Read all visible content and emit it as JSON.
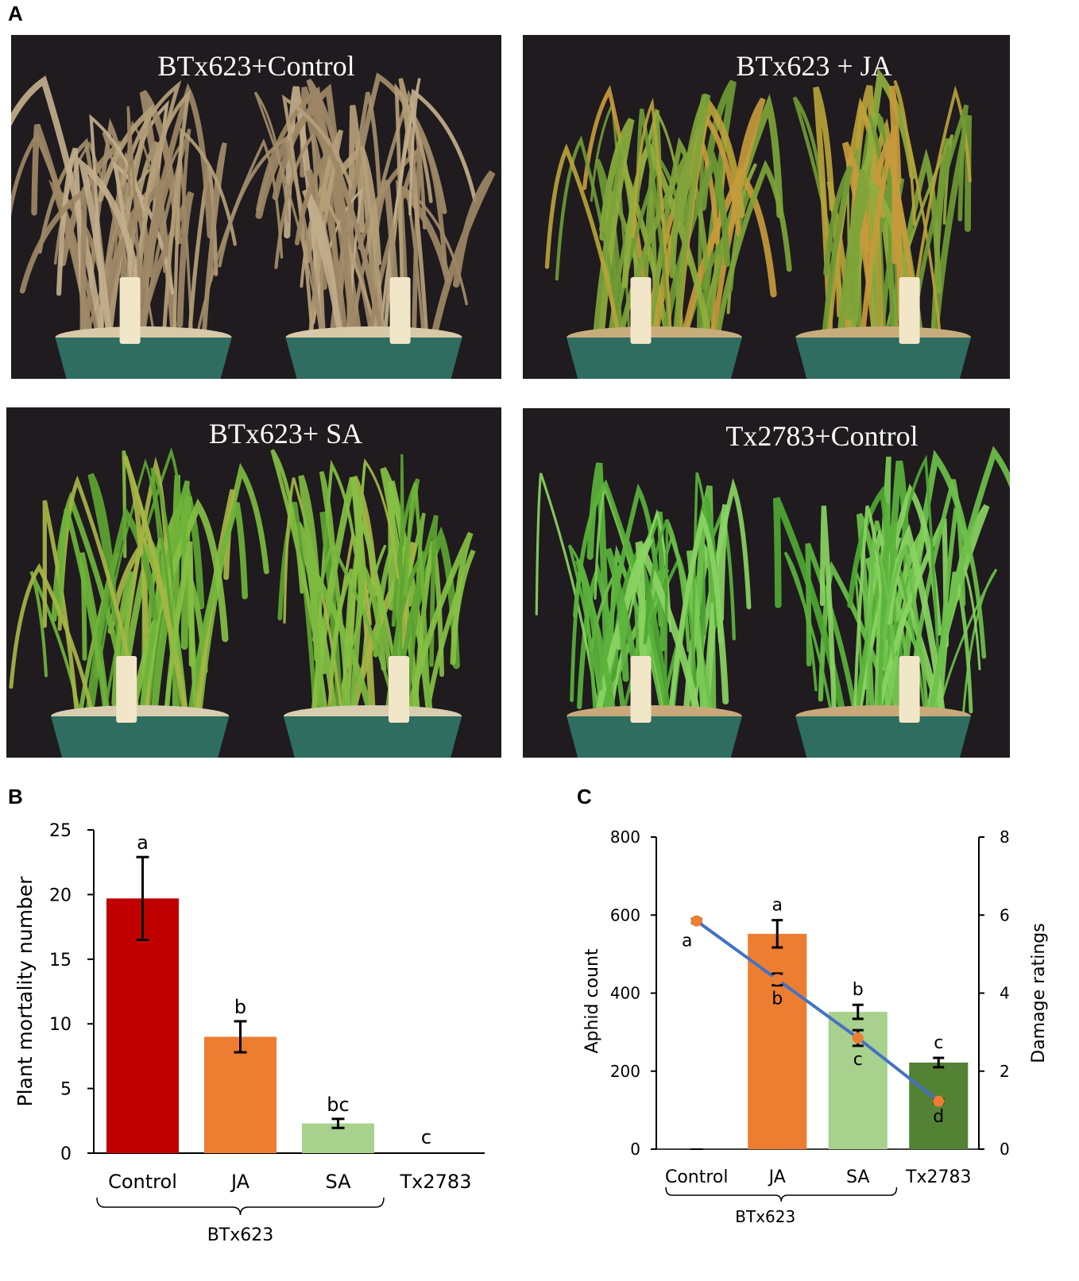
{
  "panel_labels": {
    "a": "A",
    "b": "B",
    "c": "C"
  },
  "photos": [
    {
      "label": "BTx623+Control",
      "condition": "dead"
    },
    {
      "label": "BTx623 + JA",
      "condition": "damaged"
    },
    {
      "label": "BTx623+ SA",
      "condition": "mild"
    },
    {
      "label": "Tx2783+Control",
      "condition": "healthy"
    }
  ],
  "colors": {
    "control_bar": "#c00000",
    "ja_bar": "#ed7d31",
    "sa_bar": "#a9d18e",
    "tx_bar": "#548235",
    "damage_line": "#4472c4",
    "damage_marker": "#ed7d31",
    "photo_bg": "#1f1b1e",
    "pot": "#2e6d60"
  },
  "chart_data": [
    {
      "type": "bar",
      "panel": "B",
      "categories": [
        "Control",
        "JA",
        "SA",
        "Tx2783"
      ],
      "group_label": "BTx623",
      "group_span": [
        "Control",
        "SA"
      ],
      "values": [
        19.7,
        9.0,
        2.3,
        0
      ],
      "errors": [
        3.2,
        1.2,
        0.35,
        0
      ],
      "significance": [
        "a",
        "b",
        "bc",
        "c"
      ],
      "ylabel": "Plant mortality number",
      "xlabel": "",
      "ylim": [
        0,
        25
      ],
      "yticks": [
        0,
        5,
        10,
        15,
        20,
        25
      ],
      "grid": false,
      "legend": "none"
    },
    {
      "type": "bar",
      "panel": "C",
      "categories": [
        "Control",
        "JA",
        "SA",
        "Tx2783"
      ],
      "group_label": "BTx623",
      "group_span": [
        "Control",
        "SA"
      ],
      "series": [
        {
          "kind": "bar",
          "axis": "left",
          "values": [
            0,
            552,
            352,
            222
          ],
          "errors": [
            0,
            35,
            18,
            12
          ],
          "significance": [
            "",
            "a",
            "b",
            "c"
          ]
        },
        {
          "kind": "line",
          "axis": "right",
          "values": [
            5.85,
            4.35,
            2.85,
            1.23
          ],
          "errors": [
            0.05,
            0.15,
            0.2,
            0.05
          ],
          "significance": [
            "a",
            "b",
            "c",
            "d"
          ]
        }
      ],
      "ylabel": "Aphid count",
      "y2label": "Damage ratings",
      "ylim": [
        0,
        800
      ],
      "yticks": [
        0,
        200,
        400,
        600,
        800
      ],
      "y2lim": [
        0,
        8
      ],
      "y2ticks": [
        0,
        2,
        4,
        6,
        8
      ],
      "grid": false,
      "legend": "none"
    }
  ]
}
